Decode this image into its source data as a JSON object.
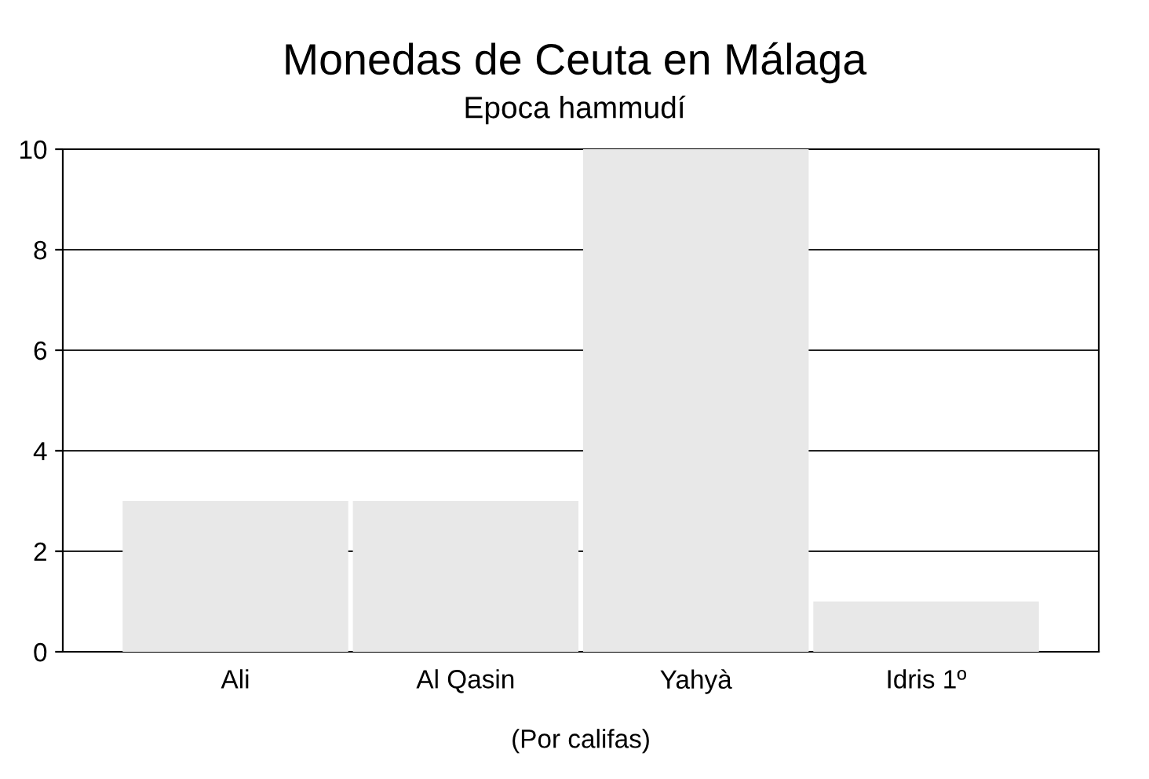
{
  "chart_data": {
    "type": "bar",
    "title": "Monedas de Ceuta en Málaga",
    "subtitle": "Epoca hammudí",
    "xlabel": "(Por califas)",
    "categories": [
      "Ali",
      "Al Qasin",
      "Yahyà",
      "Idris 1º"
    ],
    "values": [
      3,
      3,
      10,
      1
    ],
    "color": "#e8e8e8",
    "ylim": [
      0,
      10
    ],
    "yticks": [
      0,
      2,
      4,
      6,
      8,
      10
    ],
    "grid": "y"
  }
}
